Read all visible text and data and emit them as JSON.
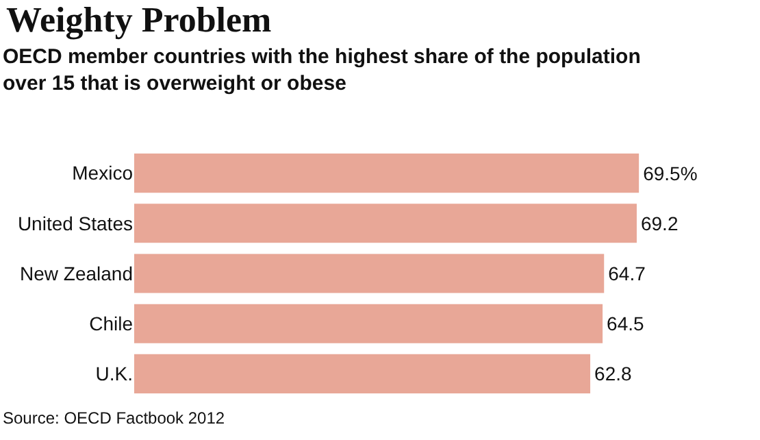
{
  "chart_data": {
    "type": "bar",
    "orientation": "horizontal",
    "title": "Weighty Problem",
    "subtitle": "OECD member countries with the highest share of the population over 15 that is overweight or obese",
    "categories": [
      "Mexico",
      "United States",
      "New Zealand",
      "Chile",
      "U.K."
    ],
    "values": [
      69.5,
      69.2,
      64.7,
      64.5,
      62.8
    ],
    "value_labels": [
      "69.5%",
      "69.2",
      "64.7",
      "64.5",
      "62.8"
    ],
    "color": "#e8a797",
    "annotations": [
      "Source: OECD Factbook 2012"
    ]
  }
}
